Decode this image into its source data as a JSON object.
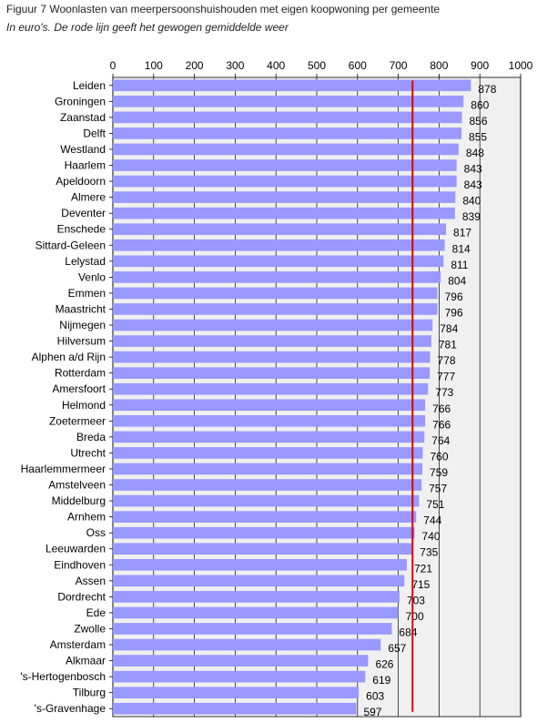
{
  "figure": {
    "title": "Figuur 7 Woonlasten van meerpersoonshuishouden met eigen koopwoning per gemeente",
    "subtitle": "In euro's. De rode lijn geeft het gewogen gemiddelde weer"
  },
  "chart_data": {
    "type": "bar",
    "orientation": "horizontal",
    "title": "Figuur 7 Woonlasten van meerpersoonshuishouden met eigen koopwoning per gemeente",
    "subtitle": "In euro's. De rode lijn geeft het gewogen gemiddelde weer",
    "categories": [
      "Leiden",
      "Groningen",
      "Zaanstad",
      "Delft",
      "Westland",
      "Haarlem",
      "Apeldoorn",
      "Almere",
      "Deventer",
      "Enschede",
      "Sittard-Geleen",
      "Lelystad",
      "Venlo",
      "Emmen",
      "Maastricht",
      "Nijmegen",
      "Hilversum",
      "Alphen a/d Rijn",
      "Rotterdam",
      "Amersfoort",
      "Helmond",
      "Zoetermeer",
      "Breda",
      "Utrecht",
      "Haarlemmermeer",
      "Amstelveen",
      "Middelburg",
      "Arnhem",
      "Oss",
      "Leeuwarden",
      "Eindhoven",
      "Assen",
      "Dordrecht",
      "Ede",
      "Zwolle",
      "Amsterdam",
      "Alkmaar",
      "'s-Hertogenbosch",
      "Tilburg",
      "'s-Gravenhage"
    ],
    "values": [
      878,
      860,
      856,
      855,
      848,
      843,
      843,
      840,
      839,
      817,
      814,
      811,
      804,
      796,
      796,
      784,
      781,
      778,
      777,
      773,
      766,
      766,
      764,
      760,
      759,
      757,
      751,
      744,
      740,
      735,
      721,
      715,
      703,
      700,
      684,
      657,
      626,
      619,
      603,
      597
    ],
    "xlim": [
      0,
      1000
    ],
    "x_ticks": [
      0,
      100,
      200,
      300,
      400,
      500,
      600,
      700,
      800,
      900,
      1000
    ],
    "x_axis_position": "top",
    "weighted_average": 735,
    "grid": true,
    "colors": {
      "bar": "#9999ff",
      "average_line": "#e00000",
      "plot_background": "#f0f0f0",
      "grid": "#000000"
    }
  }
}
